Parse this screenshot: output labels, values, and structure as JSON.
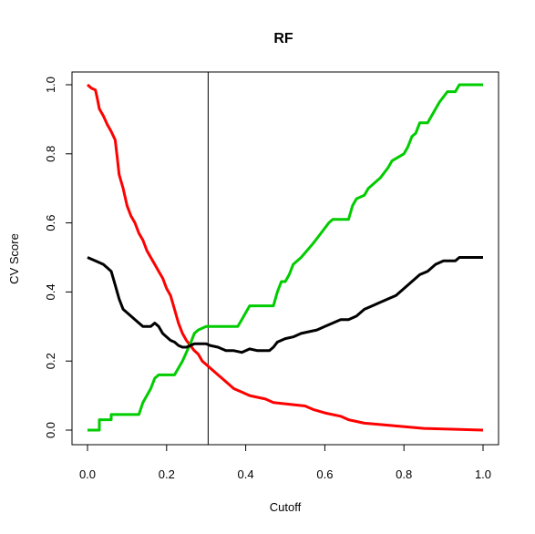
{
  "chart_data": {
    "type": "line",
    "title": "RF",
    "xlabel": "Cutoff",
    "ylabel": "CV Score",
    "xlim": [
      0,
      1
    ],
    "ylim": [
      0,
      1
    ],
    "xticks": [
      0,
      0.2,
      0.4,
      0.6,
      0.8,
      1
    ],
    "xtick_labels": [
      "0.0",
      "0.2",
      "0.4",
      "0.6",
      "0.8",
      "1.0"
    ],
    "yticks": [
      0,
      0.2,
      0.4,
      0.6,
      0.8,
      1
    ],
    "ytick_labels": [
      "0.0",
      "0.2",
      "0.4",
      "0.6",
      "0.8",
      "1.0"
    ],
    "grid": false,
    "legend": "none",
    "vline": 0.305,
    "series": [
      {
        "color": "#FF0000",
        "points": [
          [
            0.0,
            1.0
          ],
          [
            0.01,
            0.99
          ],
          [
            0.02,
            0.985
          ],
          [
            0.025,
            0.96
          ],
          [
            0.03,
            0.93
          ],
          [
            0.04,
            0.91
          ],
          [
            0.05,
            0.885
          ],
          [
            0.06,
            0.865
          ],
          [
            0.07,
            0.84
          ],
          [
            0.075,
            0.79
          ],
          [
            0.08,
            0.74
          ],
          [
            0.09,
            0.7
          ],
          [
            0.1,
            0.65
          ],
          [
            0.11,
            0.62
          ],
          [
            0.12,
            0.6
          ],
          [
            0.13,
            0.57
          ],
          [
            0.14,
            0.55
          ],
          [
            0.15,
            0.52
          ],
          [
            0.16,
            0.5
          ],
          [
            0.17,
            0.48
          ],
          [
            0.18,
            0.46
          ],
          [
            0.19,
            0.44
          ],
          [
            0.2,
            0.41
          ],
          [
            0.21,
            0.39
          ],
          [
            0.22,
            0.35
          ],
          [
            0.23,
            0.31
          ],
          [
            0.24,
            0.28
          ],
          [
            0.25,
            0.26
          ],
          [
            0.26,
            0.245
          ],
          [
            0.27,
            0.23
          ],
          [
            0.28,
            0.22
          ],
          [
            0.29,
            0.2
          ],
          [
            0.3,
            0.19
          ],
          [
            0.31,
            0.18
          ],
          [
            0.33,
            0.16
          ],
          [
            0.35,
            0.14
          ],
          [
            0.37,
            0.12
          ],
          [
            0.39,
            0.11
          ],
          [
            0.41,
            0.1
          ],
          [
            0.45,
            0.09
          ],
          [
            0.47,
            0.08
          ],
          [
            0.55,
            0.07
          ],
          [
            0.57,
            0.06
          ],
          [
            0.6,
            0.05
          ],
          [
            0.64,
            0.04
          ],
          [
            0.66,
            0.03
          ],
          [
            0.7,
            0.02
          ],
          [
            0.75,
            0.015
          ],
          [
            0.85,
            0.005
          ],
          [
            1.0,
            0.0
          ]
        ]
      },
      {
        "color": "#00CC00",
        "points": [
          [
            0.0,
            0.0
          ],
          [
            0.03,
            0.0
          ],
          [
            0.03,
            0.03
          ],
          [
            0.06,
            0.03
          ],
          [
            0.06,
            0.045
          ],
          [
            0.13,
            0.045
          ],
          [
            0.14,
            0.08
          ],
          [
            0.16,
            0.12
          ],
          [
            0.17,
            0.15
          ],
          [
            0.18,
            0.16
          ],
          [
            0.22,
            0.16
          ],
          [
            0.24,
            0.2
          ],
          [
            0.26,
            0.25
          ],
          [
            0.27,
            0.28
          ],
          [
            0.28,
            0.29
          ],
          [
            0.3,
            0.3
          ],
          [
            0.38,
            0.3
          ],
          [
            0.39,
            0.32
          ],
          [
            0.4,
            0.34
          ],
          [
            0.41,
            0.36
          ],
          [
            0.47,
            0.36
          ],
          [
            0.48,
            0.4
          ],
          [
            0.49,
            0.43
          ],
          [
            0.5,
            0.43
          ],
          [
            0.51,
            0.45
          ],
          [
            0.52,
            0.48
          ],
          [
            0.54,
            0.5
          ],
          [
            0.57,
            0.54
          ],
          [
            0.59,
            0.57
          ],
          [
            0.61,
            0.6
          ],
          [
            0.62,
            0.61
          ],
          [
            0.66,
            0.61
          ],
          [
            0.67,
            0.65
          ],
          [
            0.68,
            0.67
          ],
          [
            0.7,
            0.68
          ],
          [
            0.71,
            0.7
          ],
          [
            0.74,
            0.73
          ],
          [
            0.76,
            0.76
          ],
          [
            0.77,
            0.78
          ],
          [
            0.8,
            0.8
          ],
          [
            0.81,
            0.82
          ],
          [
            0.82,
            0.85
          ],
          [
            0.83,
            0.86
          ],
          [
            0.84,
            0.89
          ],
          [
            0.86,
            0.89
          ],
          [
            0.88,
            0.93
          ],
          [
            0.89,
            0.95
          ],
          [
            0.91,
            0.98
          ],
          [
            0.93,
            0.98
          ],
          [
            0.94,
            1.0
          ],
          [
            1.0,
            1.0
          ]
        ]
      },
      {
        "color": "#000000",
        "points": [
          [
            0.0,
            0.5
          ],
          [
            0.02,
            0.49
          ],
          [
            0.04,
            0.48
          ],
          [
            0.05,
            0.47
          ],
          [
            0.06,
            0.46
          ],
          [
            0.065,
            0.44
          ],
          [
            0.07,
            0.42
          ],
          [
            0.08,
            0.38
          ],
          [
            0.09,
            0.35
          ],
          [
            0.1,
            0.34
          ],
          [
            0.11,
            0.33
          ],
          [
            0.12,
            0.32
          ],
          [
            0.13,
            0.31
          ],
          [
            0.14,
            0.3
          ],
          [
            0.15,
            0.3
          ],
          [
            0.16,
            0.3
          ],
          [
            0.17,
            0.31
          ],
          [
            0.18,
            0.3
          ],
          [
            0.19,
            0.28
          ],
          [
            0.2,
            0.27
          ],
          [
            0.21,
            0.26
          ],
          [
            0.22,
            0.255
          ],
          [
            0.23,
            0.245
          ],
          [
            0.24,
            0.24
          ],
          [
            0.25,
            0.24
          ],
          [
            0.26,
            0.245
          ],
          [
            0.27,
            0.25
          ],
          [
            0.28,
            0.25
          ],
          [
            0.29,
            0.25
          ],
          [
            0.3,
            0.25
          ],
          [
            0.31,
            0.245
          ],
          [
            0.33,
            0.24
          ],
          [
            0.35,
            0.23
          ],
          [
            0.37,
            0.23
          ],
          [
            0.39,
            0.225
          ],
          [
            0.41,
            0.235
          ],
          [
            0.43,
            0.23
          ],
          [
            0.46,
            0.23
          ],
          [
            0.47,
            0.24
          ],
          [
            0.48,
            0.255
          ],
          [
            0.5,
            0.265
          ],
          [
            0.52,
            0.27
          ],
          [
            0.54,
            0.28
          ],
          [
            0.56,
            0.285
          ],
          [
            0.58,
            0.29
          ],
          [
            0.6,
            0.3
          ],
          [
            0.62,
            0.31
          ],
          [
            0.64,
            0.32
          ],
          [
            0.66,
            0.32
          ],
          [
            0.68,
            0.33
          ],
          [
            0.7,
            0.35
          ],
          [
            0.72,
            0.36
          ],
          [
            0.74,
            0.37
          ],
          [
            0.76,
            0.38
          ],
          [
            0.78,
            0.39
          ],
          [
            0.8,
            0.41
          ],
          [
            0.82,
            0.43
          ],
          [
            0.84,
            0.45
          ],
          [
            0.86,
            0.46
          ],
          [
            0.88,
            0.48
          ],
          [
            0.9,
            0.49
          ],
          [
            0.93,
            0.49
          ],
          [
            0.94,
            0.5
          ],
          [
            1.0,
            0.5
          ]
        ]
      }
    ]
  }
}
